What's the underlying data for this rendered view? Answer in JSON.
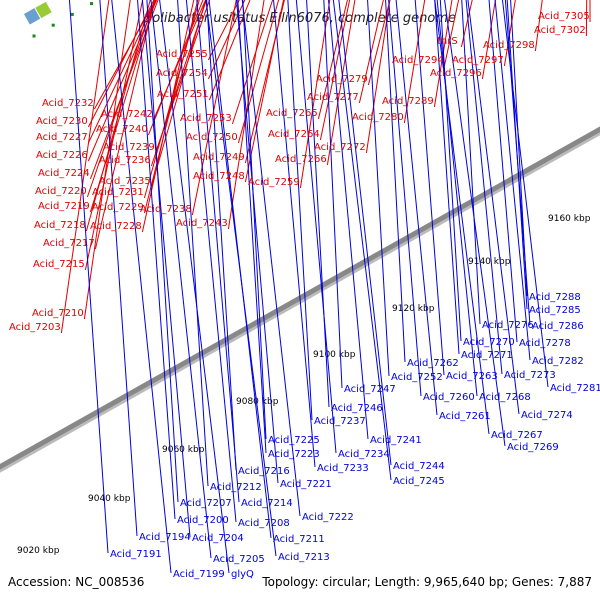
{
  "title": "Solibacter usitatus Ellin6076, complete genome",
  "footer": {
    "accession": "Accession: NC_008536",
    "summary": "Topology: circular; Length: 9,965,640 bp; Genes: 7,887"
  },
  "colors": {
    "forward": "#e00000",
    "reverse": "#0000e0",
    "backbone": "#888888",
    "tick": "#1a8a1a"
  },
  "ruler": [
    "9020 kbp",
    "9040 kbp",
    "9060 kbp",
    "9080 kbp",
    "9100 kbp",
    "9120 kbp",
    "9140 kbp",
    "9160 kbp"
  ],
  "top_labels": [
    "Acid_7305",
    "Acid_7302",
    "thrS",
    "Acid_7298",
    "Acid_7294",
    "Acid_7297",
    "Acid_7296",
    "Acid_7255",
    "Acid_7254",
    "Acid_7279",
    "Acid_7251",
    "Acid_7277",
    "Acid_7289",
    "Acid_7232",
    "Acid_7242",
    "Acid_7253",
    "Acid_7265",
    "Acid_7280",
    "Acid_7230",
    "Acid_7240",
    "Acid_7227",
    "Acid_7250",
    "Acid_7264",
    "Acid_7272",
    "Acid_7239",
    "Acid_7226",
    "Acid_7249",
    "Acid_7266",
    "Acid_7236",
    "Acid_7224",
    "Acid_7235",
    "Acid_7248",
    "Acid_7259",
    "Acid_7220",
    "Acid_7231",
    "Acid_7219",
    "Acid_7229",
    "Acid_7238",
    "Acid_7218",
    "Acid_7228",
    "Acid_7243",
    "Acid_7217",
    "Acid_7215",
    "Acid_7210",
    "Acid_7203"
  ],
  "bottom_labels": [
    "Acid_7288",
    "Acid_7285",
    "Acid_7276",
    "Acid_7286",
    "Acid_7278",
    "Acid_7270",
    "Acid_7282",
    "Acid_7271",
    "Acid_7262",
    "Acid_7273",
    "Acid_7281",
    "Acid_7252",
    "Acid_7263",
    "Acid_7247",
    "Acid_7268",
    "Acid_7260",
    "Acid_7274",
    "Acid_7246",
    "Acid_7261",
    "Acid_7267",
    "Acid_7237",
    "Acid_7241",
    "Acid_7269",
    "Acid_7225",
    "Acid_7223",
    "Acid_7234",
    "Acid_7233",
    "Acid_7244",
    "Acid_7245",
    "Acid_7216",
    "Acid_7221",
    "Acid_7212",
    "Acid_7214",
    "Acid_7207",
    "Acid_7222",
    "Acid_7200",
    "Acid_7208",
    "Acid_7194",
    "Acid_7204",
    "Acid_7211",
    "Acid_7191",
    "Acid_7205",
    "Acid_7213",
    "Acid_7199",
    "glyQ"
  ]
}
